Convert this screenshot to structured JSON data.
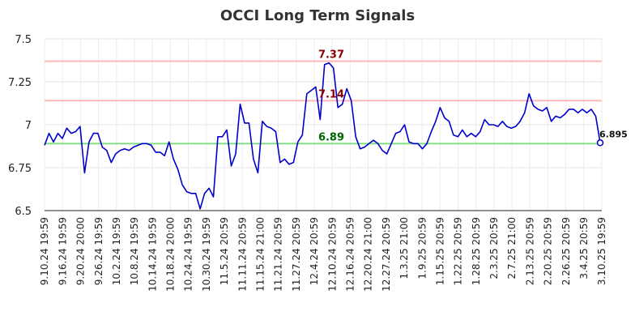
{
  "chart_data": {
    "type": "line",
    "title": "OCCI Long Term Signals",
    "xlabel": "",
    "ylabel": "",
    "ylim": [
      6.5,
      7.5
    ],
    "y_ticks": [
      "6.5",
      "6.75",
      "7",
      "7.25",
      "7.5"
    ],
    "grid": true,
    "x_ticks": [
      "9.10.24 19:59",
      "9.16.24 19:59",
      "9.20.24 20:00",
      "9.26.24 19:59",
      "10.2.24 19:59",
      "10.8.24 19:59",
      "10.14.24 19:59",
      "10.18.24 20:00",
      "10.24.24 19:59",
      "10.30.24 19:59",
      "11.5.24 20:59",
      "11.11.24 20:59",
      "11.15.24 21:00",
      "11.21.24 20:59",
      "11.27.24 20:59",
      "12.4.24 20:59",
      "12.10.24 20:59",
      "12.16.24 20:59",
      "12.20.24 21:00",
      "12.27.24 20:59",
      "1.3.25 21:00",
      "1.9.25 20:59",
      "1.15.25 20:59",
      "1.22.25 20:59",
      "1.28.25 20:59",
      "2.3.25 20:59",
      "2.7.25 21:00",
      "2.13.25 20:59",
      "2.20.25 20:59",
      "2.26.25 20:59",
      "3.4.25 20:59",
      "3.10.25 19:59"
    ],
    "series": [
      {
        "color": "#0000cc",
        "values": [
          6.88,
          6.95,
          6.9,
          6.95,
          6.92,
          6.98,
          6.95,
          6.96,
          6.99,
          6.72,
          6.9,
          6.95,
          6.95,
          6.87,
          6.85,
          6.78,
          6.83,
          6.85,
          6.86,
          6.85,
          6.87,
          6.88,
          6.89,
          6.89,
          6.88,
          6.84,
          6.84,
          6.82,
          6.9,
          6.8,
          6.74,
          6.65,
          6.61,
          6.6,
          6.6,
          6.51,
          6.6,
          6.63,
          6.58,
          6.93,
          6.93,
          6.97,
          6.76,
          6.83,
          7.12,
          7.01,
          7.01,
          6.8,
          6.72,
          7.02,
          6.99,
          6.98,
          6.96,
          6.78,
          6.8,
          6.77,
          6.78,
          6.9,
          6.94,
          7.18,
          7.2,
          7.22,
          7.03,
          7.35,
          7.36,
          7.33,
          7.1,
          7.12,
          7.21,
          7.14,
          6.93,
          6.86,
          6.87,
          6.89,
          6.91,
          6.89,
          6.85,
          6.83,
          6.89,
          6.95,
          6.96,
          7.0,
          6.9,
          6.89,
          6.89,
          6.86,
          6.89,
          6.96,
          7.02,
          7.1,
          7.04,
          7.02,
          6.94,
          6.93,
          6.97,
          6.93,
          6.95,
          6.93,
          6.96,
          7.03,
          7.0,
          7.0,
          6.99,
          7.02,
          6.99,
          6.98,
          6.99,
          7.02,
          7.07,
          7.18,
          7.11,
          7.09,
          7.08,
          7.1,
          7.02,
          7.05,
          7.04,
          7.06,
          7.09,
          7.09,
          7.07,
          7.09,
          7.07,
          7.09,
          7.05,
          6.895
        ]
      }
    ],
    "reference_lines": [
      {
        "value": 7.37,
        "label": "7.37",
        "line_color": "#ffb3b3",
        "label_color": "#8b0000"
      },
      {
        "value": 7.14,
        "label": "7.14",
        "line_color": "#ffb3b3",
        "label_color": "#8b0000"
      },
      {
        "value": 6.89,
        "label": "6.89",
        "line_color": "#7ddc7d",
        "label_color": "#006400"
      }
    ],
    "last_value_label": "6.895"
  }
}
